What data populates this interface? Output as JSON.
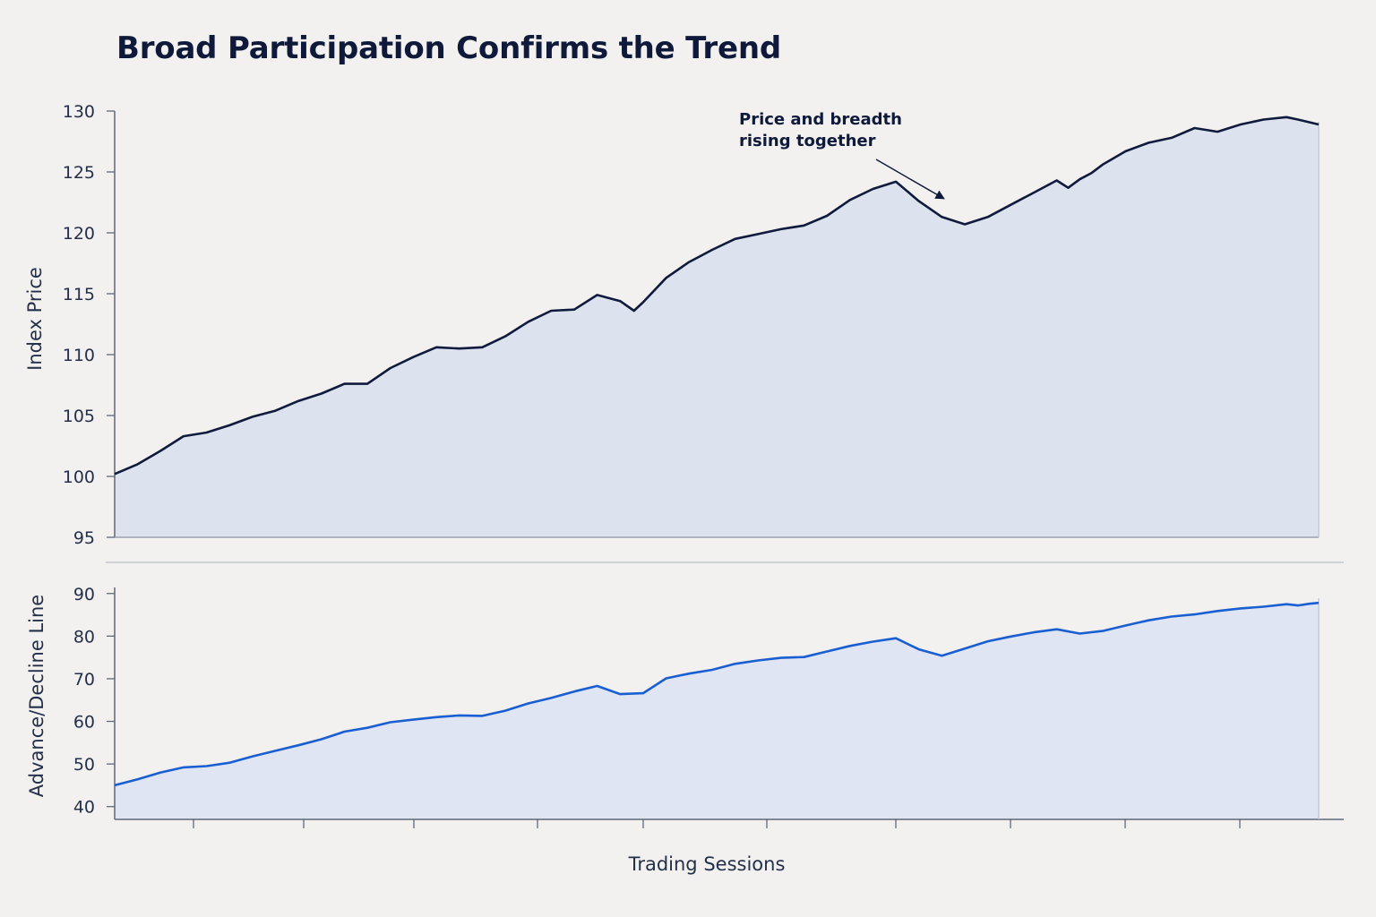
{
  "title": "Broad Participation Confirms the Trend",
  "colors": {
    "price_line": "#101a3c",
    "price_fill": "#dde3ee",
    "breadth_line": "#1a5fd1",
    "breadth_fill": "#dfe5f3",
    "axis": "#5f6878"
  },
  "chart_data": [
    {
      "type": "area",
      "panel": "top",
      "ylabel": "Index Price",
      "xlabel": "",
      "ylim": [
        95,
        130
      ],
      "yticks": [
        95,
        100,
        105,
        110,
        115,
        120,
        125,
        130
      ],
      "xlim": [
        0,
        524
      ],
      "annotation": {
        "lines": [
          "Price and breadth",
          "rising together"
        ],
        "target_x": 361,
        "target_y": 122.8
      },
      "series": [
        {
          "x": [
            0,
            10,
            20,
            30,
            40,
            50,
            60,
            70,
            80,
            90,
            100,
            110,
            120,
            130,
            140,
            150,
            160,
            170,
            180,
            190,
            200,
            210,
            220,
            226,
            230,
            240,
            250,
            256,
            260,
            270,
            280,
            290,
            300,
            310,
            320,
            330,
            340,
            350,
            360,
            370,
            380,
            390,
            400,
            410,
            415,
            420,
            425,
            430,
            440,
            450,
            460,
            470,
            480,
            490,
            500,
            510,
            515,
            524
          ],
          "y": [
            100.2,
            101,
            102.1,
            103.3,
            103.6,
            104.2,
            104.9,
            105.4,
            106.2,
            106.8,
            107.6,
            107.6,
            108.9,
            109.8,
            110.6,
            110.5,
            110.6,
            111.5,
            112.7,
            113.6,
            113.7,
            114.9,
            114.4,
            113.6,
            114.3,
            116.3,
            117.6,
            118.2,
            118.6,
            119.5,
            119.9,
            120.3,
            120.6,
            121.4,
            122.7,
            123.6,
            124.2,
            122.6,
            121.3,
            120.7,
            121.3,
            122.3,
            123.3,
            124.3,
            123.7,
            124.4,
            124.9,
            125.6,
            126.7,
            127.4,
            127.8,
            128.6,
            128.3,
            128.9,
            129.3,
            129.5,
            129.3,
            128.9
          ]
        }
      ]
    },
    {
      "type": "area",
      "panel": "bottom",
      "ylabel": "Advance/Decline Line",
      "xlabel": "Trading Sessions",
      "ylim": [
        37,
        91
      ],
      "yticks": [
        40,
        50,
        60,
        70,
        80,
        90
      ],
      "xlim": [
        0,
        524
      ],
      "series": [
        {
          "x": [
            0,
            10,
            20,
            30,
            40,
            50,
            60,
            70,
            80,
            90,
            100,
            110,
            120,
            130,
            140,
            150,
            160,
            170,
            180,
            190,
            200,
            210,
            220,
            230,
            240,
            250,
            260,
            270,
            280,
            290,
            300,
            310,
            320,
            330,
            340,
            350,
            360,
            370,
            380,
            390,
            400,
            410,
            420,
            430,
            440,
            450,
            460,
            470,
            480,
            490,
            500,
            510,
            515,
            520,
            524
          ],
          "y": [
            45,
            46.4,
            48,
            49.2,
            49.5,
            50.3,
            51.8,
            53.1,
            54.4,
            55.8,
            57.6,
            58.5,
            59.8,
            60.4,
            61,
            61.4,
            61.3,
            62.5,
            64.2,
            65.5,
            67,
            68.3,
            66.4,
            66.6,
            70.1,
            71.2,
            72.1,
            73.5,
            74.3,
            74.9,
            75.1,
            76.4,
            77.7,
            78.7,
            79.5,
            76.9,
            75.4,
            77.1,
            78.8,
            79.9,
            80.9,
            81.6,
            80.6,
            81.2,
            82.5,
            83.7,
            84.6,
            85.1,
            85.9,
            86.5,
            86.9,
            87.5,
            87.2,
            87.6,
            87.8
          ]
        }
      ]
    }
  ]
}
